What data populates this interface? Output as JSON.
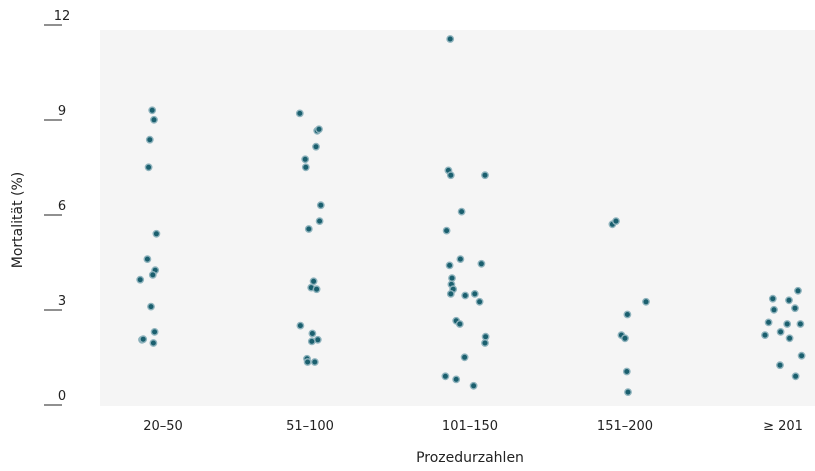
{
  "chart_data": {
    "type": "scatter",
    "title": "",
    "xlabel": "Prozedurzahlen",
    "ylabel": "Mortalität (%)",
    "categories": [
      "20–50",
      "51–100",
      "101–150",
      "151–200",
      "≥ 201"
    ],
    "yticks": [
      0,
      3,
      6,
      9,
      12
    ],
    "ylim": [
      0,
      12
    ],
    "grid": false,
    "colors": {
      "point": "#1a5f6e",
      "point_halo": "#8fb3bd",
      "plot_background": "#f5f5f5",
      "axis": "#222222"
    },
    "series": [
      {
        "category": "20–50",
        "points": [
          [
            -0.18,
            9.15
          ],
          [
            -0.15,
            8.85
          ],
          [
            -0.22,
            8.22
          ],
          [
            -0.24,
            7.35
          ],
          [
            -0.11,
            5.25
          ],
          [
            -0.26,
            4.45
          ],
          [
            -0.13,
            4.1
          ],
          [
            -0.17,
            3.95
          ],
          [
            -0.38,
            3.8
          ],
          [
            -0.2,
            2.95
          ],
          [
            -0.14,
            2.15
          ],
          [
            -0.35,
            1.9
          ],
          [
            -0.33,
            1.92
          ],
          [
            -0.16,
            1.8
          ]
        ]
      },
      {
        "category": "51–100",
        "points": [
          [
            -0.17,
            9.05
          ],
          [
            0.12,
            8.5
          ],
          [
            0.15,
            8.55
          ],
          [
            0.1,
            8.0
          ],
          [
            -0.08,
            7.6
          ],
          [
            -0.07,
            7.35
          ],
          [
            0.18,
            6.15
          ],
          [
            0.16,
            5.65
          ],
          [
            -0.02,
            5.4
          ],
          [
            0.06,
            3.75
          ],
          [
            0.02,
            3.55
          ],
          [
            0.11,
            3.5
          ],
          [
            -0.16,
            2.35
          ],
          [
            0.04,
            2.1
          ],
          [
            0.13,
            1.9
          ],
          [
            0.03,
            1.85
          ],
          [
            -0.05,
            1.3
          ],
          [
            -0.04,
            1.2
          ],
          [
            0.08,
            1.2
          ]
        ]
      },
      {
        "category": "101–150",
        "points": [
          [
            -0.33,
            11.4
          ],
          [
            -0.36,
            7.25
          ],
          [
            -0.32,
            7.1
          ],
          [
            0.25,
            7.1
          ],
          [
            -0.14,
            5.95
          ],
          [
            -0.39,
            5.35
          ],
          [
            -0.16,
            4.45
          ],
          [
            0.19,
            4.3
          ],
          [
            -0.34,
            4.25
          ],
          [
            -0.3,
            3.85
          ],
          [
            -0.31,
            3.65
          ],
          [
            -0.28,
            3.5
          ],
          [
            -0.08,
            3.3
          ],
          [
            0.08,
            3.35
          ],
          [
            -0.32,
            3.35
          ],
          [
            0.16,
            3.1
          ],
          [
            -0.23,
            2.5
          ],
          [
            -0.17,
            2.4
          ],
          [
            0.26,
            2.0
          ],
          [
            0.25,
            1.8
          ],
          [
            -0.09,
            1.35
          ],
          [
            -0.41,
            0.75
          ],
          [
            -0.23,
            0.65
          ],
          [
            0.06,
            0.45
          ]
        ]
      },
      {
        "category": "151–200",
        "points": [
          [
            -0.21,
            5.55
          ],
          [
            -0.15,
            5.65
          ],
          [
            0.35,
            3.1
          ],
          [
            0.04,
            2.7
          ],
          [
            -0.06,
            2.05
          ],
          [
            0.0,
            1.95
          ],
          [
            0.03,
            0.9
          ],
          [
            0.05,
            0.25
          ]
        ]
      },
      {
        "category": "≥ 201",
        "points": [
          [
            -0.17,
            3.2
          ],
          [
            0.1,
            3.15
          ],
          [
            0.25,
            3.45
          ],
          [
            -0.15,
            2.85
          ],
          [
            0.2,
            2.9
          ],
          [
            -0.24,
            2.45
          ],
          [
            0.07,
            2.4
          ],
          [
            0.29,
            2.4
          ],
          [
            -0.3,
            2.05
          ],
          [
            -0.04,
            2.15
          ],
          [
            0.11,
            1.95
          ],
          [
            0.31,
            1.4
          ],
          [
            -0.05,
            1.1
          ],
          [
            0.21,
            0.75
          ]
        ]
      }
    ]
  }
}
